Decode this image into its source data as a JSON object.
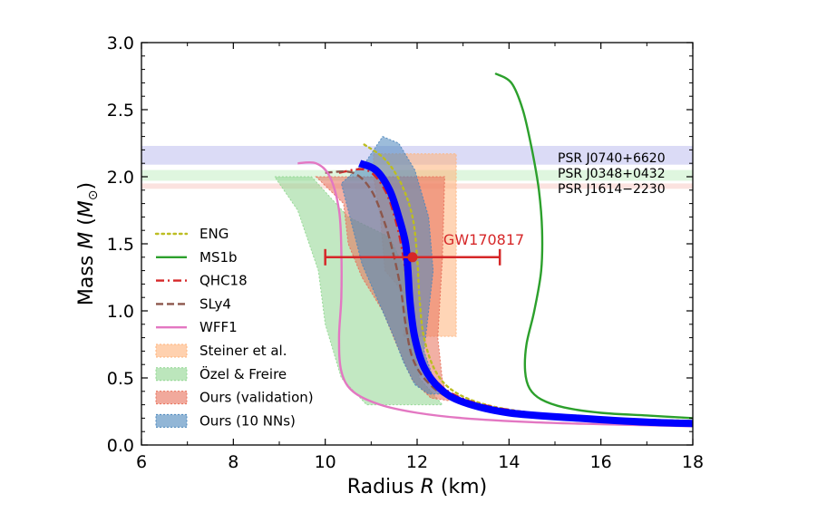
{
  "chart_data": {
    "type": "line",
    "title": "",
    "xlabel": "Radius",
    "xlabel_symbol": "R",
    "xlabel_unit": "(km)",
    "ylabel": "Mass",
    "ylabel_symbol": "M",
    "ylabel_unit_prefix": "(",
    "ylabel_unit": "M",
    "ylabel_unit_sub": "⊙",
    "ylabel_unit_suffix": ")",
    "xlim": [
      6,
      18
    ],
    "ylim": [
      0,
      3
    ],
    "xticks": [
      6,
      8,
      10,
      12,
      14,
      16,
      18
    ],
    "xtick_labels": [
      "6",
      "8",
      "10",
      "12",
      "14",
      "16",
      "18"
    ],
    "yticks": [
      0,
      0.5,
      1,
      1.5,
      2,
      2.5,
      3
    ],
    "ytick_labels": [
      "0.0",
      "0.5",
      "1.0",
      "1.5",
      "2.0",
      "2.5",
      "3.0"
    ],
    "grid": false,
    "legend_position": "lower-left",
    "mass_bands": [
      {
        "label": "PSR J0740+6620",
        "ymin": 2.09,
        "ymax": 2.23,
        "color": "#b8b8ee"
      },
      {
        "label": "PSR J0348+0432",
        "ymin": 1.97,
        "ymax": 2.05,
        "color": "#bfeebf"
      },
      {
        "label": "PSR J1614−2230",
        "ymin": 1.91,
        "ymax": 1.95,
        "color": "#f8c6c0"
      }
    ],
    "measurement": {
      "label": "GW170817",
      "x": 11.9,
      "y": 1.4,
      "xerr_low": 1.9,
      "xerr_high": 1.9,
      "color": "#d62728"
    },
    "regions": [
      {
        "name": "Steiner et al.",
        "color": "#ffb27a",
        "points": [
          [
            11.05,
            2.17
          ],
          [
            12.85,
            2.17
          ],
          [
            12.85,
            0.81
          ],
          [
            11.7,
            0.81
          ],
          [
            11.8,
            1.1
          ],
          [
            11.3,
            1.3
          ],
          [
            11.2,
            1.7
          ],
          [
            11.05,
            2.0
          ]
        ]
      },
      {
        "name": "Özel & Freire",
        "color": "#8fd68f",
        "points": [
          [
            8.9,
            2.0
          ],
          [
            9.7,
            2.0
          ],
          [
            10.5,
            1.7
          ],
          [
            11.4,
            1.55
          ],
          [
            11.75,
            1.3
          ],
          [
            11.85,
            0.9
          ],
          [
            12.05,
            0.5
          ],
          [
            12.55,
            0.3
          ],
          [
            10.9,
            0.3
          ],
          [
            10.35,
            0.5
          ],
          [
            10.0,
            0.9
          ],
          [
            9.85,
            1.3
          ],
          [
            9.4,
            1.75
          ]
        ]
      },
      {
        "name": "Ours (validation)",
        "color": "#e8705a",
        "points": [
          [
            9.8,
            2.0
          ],
          [
            12.6,
            2.0
          ],
          [
            12.55,
            1.4
          ],
          [
            12.45,
            0.8
          ],
          [
            12.55,
            0.48
          ],
          [
            12.7,
            0.33
          ],
          [
            12.3,
            0.35
          ],
          [
            11.9,
            0.48
          ],
          [
            11.55,
            0.75
          ],
          [
            11.25,
            1.0
          ],
          [
            10.8,
            1.25
          ],
          [
            10.5,
            1.5
          ],
          [
            10.4,
            1.8
          ]
        ]
      },
      {
        "name": "Ours (10 NNs)",
        "color": "#4a85bb",
        "points": [
          [
            11.25,
            2.3
          ],
          [
            11.6,
            2.25
          ],
          [
            11.95,
            2.05
          ],
          [
            12.25,
            1.7
          ],
          [
            12.35,
            1.3
          ],
          [
            12.25,
            1.0
          ],
          [
            12.15,
            0.7
          ],
          [
            12.35,
            0.5
          ],
          [
            12.65,
            0.38
          ],
          [
            12.25,
            0.38
          ],
          [
            11.95,
            0.45
          ],
          [
            11.7,
            0.62
          ],
          [
            11.5,
            0.8
          ],
          [
            10.8,
            1.35
          ],
          [
            10.35,
            1.95
          ],
          [
            10.9,
            2.12
          ]
        ]
      }
    ],
    "series": [
      {
        "name": "ENG",
        "color": "#bcbd22",
        "dash": "dotted",
        "x": [
          10.85,
          11.3,
          11.65,
          11.9,
          12.0,
          12.05,
          12.15,
          12.4,
          12.8,
          13.5,
          14.5,
          16.0,
          18.0
        ],
        "y": [
          2.24,
          2.13,
          1.95,
          1.7,
          1.4,
          1.1,
          0.8,
          0.55,
          0.4,
          0.3,
          0.24,
          0.2,
          0.18
        ]
      },
      {
        "name": "MS1b",
        "color": "#2ca02c",
        "dash": "solid",
        "x": [
          13.7,
          14.05,
          14.3,
          14.5,
          14.65,
          14.72,
          14.7,
          14.55,
          14.38,
          14.35,
          14.45,
          14.7,
          15.2,
          16.0,
          17.0,
          18.0
        ],
        "y": [
          2.77,
          2.7,
          2.5,
          2.2,
          1.9,
          1.6,
          1.3,
          1.0,
          0.75,
          0.55,
          0.42,
          0.34,
          0.28,
          0.24,
          0.22,
          0.2
        ]
      },
      {
        "name": "QHC18",
        "color": "#d62728",
        "dash": "dashdot",
        "x": [
          10.3,
          10.9,
          11.3,
          11.55,
          11.7,
          11.8,
          11.9,
          12.1,
          12.4,
          12.9,
          13.7,
          15.0,
          16.5,
          18.0
        ],
        "y": [
          2.03,
          2.05,
          1.9,
          1.65,
          1.4,
          1.15,
          0.9,
          0.65,
          0.48,
          0.36,
          0.28,
          0.22,
          0.19,
          0.17
        ]
      },
      {
        "name": "SLy4",
        "color": "#8c564b",
        "dash": "dashed",
        "x": [
          10.0,
          10.6,
          11.0,
          11.3,
          11.5,
          11.65,
          11.75,
          11.9,
          12.2,
          12.7,
          13.5,
          15.0,
          16.5,
          18.0
        ],
        "y": [
          2.03,
          2.03,
          1.9,
          1.65,
          1.4,
          1.15,
          0.9,
          0.65,
          0.48,
          0.35,
          0.27,
          0.21,
          0.18,
          0.17
        ]
      },
      {
        "name": "WFF1",
        "color": "#e377c2",
        "dash": "solid",
        "x": [
          9.4,
          9.8,
          10.1,
          10.3,
          10.35,
          10.35,
          10.3,
          10.35,
          10.6,
          11.2,
          12.0,
          13.0,
          14.5,
          16.0,
          18.0
        ],
        "y": [
          2.1,
          2.1,
          2.0,
          1.75,
          1.45,
          1.1,
          0.8,
          0.55,
          0.4,
          0.3,
          0.24,
          0.2,
          0.17,
          0.155,
          0.14
        ]
      },
      {
        "name": "",
        "color": "#0000ff",
        "dash": "solid",
        "thick": true,
        "x": [
          10.75,
          11.1,
          11.4,
          11.6,
          11.75,
          11.8,
          11.85,
          11.95,
          12.15,
          12.5,
          13.0,
          14.0,
          15.5,
          17.0,
          18.0
        ],
        "y": [
          2.1,
          2.05,
          1.9,
          1.7,
          1.5,
          1.3,
          1.05,
          0.8,
          0.58,
          0.42,
          0.32,
          0.24,
          0.2,
          0.17,
          0.16
        ]
      }
    ],
    "legend": [
      "ENG",
      "MS1b",
      "QHC18",
      "SLy4",
      "WFF1",
      "Steiner et al.",
      "Özel & Freire",
      "Ours (validation)",
      "Ours (10 NNs)"
    ]
  }
}
